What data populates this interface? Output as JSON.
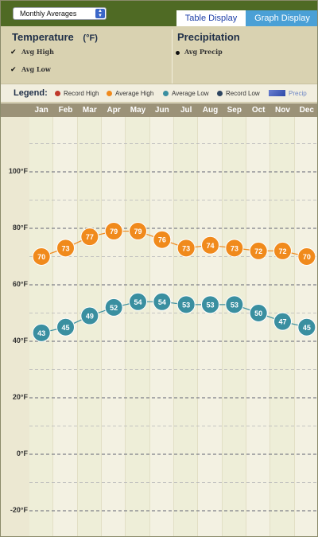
{
  "header": {
    "period_select": "Monthly Averages",
    "tabs": [
      {
        "label": "Table Display",
        "active": false
      },
      {
        "label": "Graph Display",
        "active": true
      }
    ]
  },
  "controls": {
    "temperature": {
      "title": "Temperature",
      "unit": "(°F)",
      "options": [
        {
          "label": "Avg High",
          "checked": true
        },
        {
          "label": "Avg Low",
          "checked": true
        }
      ]
    },
    "precipitation": {
      "title": "Precipitation",
      "options": [
        {
          "label": "Avg Precip",
          "selected": true
        }
      ]
    }
  },
  "legend": {
    "title": "Legend:",
    "items": [
      {
        "label": "Record High",
        "color": "#c0392b"
      },
      {
        "label": "Average High",
        "color": "#f08a1c"
      },
      {
        "label": "Average Low",
        "color": "#3a8fa0"
      },
      {
        "label": "Record Low",
        "color": "#2d4560"
      },
      {
        "label": "Precip",
        "color": "#4660b8"
      }
    ]
  },
  "chart_data": {
    "type": "line",
    "categories": [
      "Jan",
      "Feb",
      "Mar",
      "Apr",
      "May",
      "Jun",
      "Jul",
      "Aug",
      "Sep",
      "Oct",
      "Nov",
      "Dec"
    ],
    "y_ticks": [
      "100°F",
      "80°F",
      "60°F",
      "40°F",
      "20°F",
      "0°F",
      "-20°F"
    ],
    "y_tick_values": [
      100,
      80,
      60,
      40,
      20,
      0,
      -20
    ],
    "ylim": [
      -20,
      100
    ],
    "grid": true,
    "series": [
      {
        "name": "Average High",
        "color": "#f08a1c",
        "values": [
          70,
          73,
          77,
          79,
          79,
          76,
          73,
          74,
          73,
          72,
          72,
          70
        ]
      },
      {
        "name": "Average Low",
        "color": "#3a8fa0",
        "values": [
          43,
          45,
          49,
          52,
          54,
          54,
          53,
          53,
          53,
          50,
          47,
          45
        ]
      }
    ]
  }
}
